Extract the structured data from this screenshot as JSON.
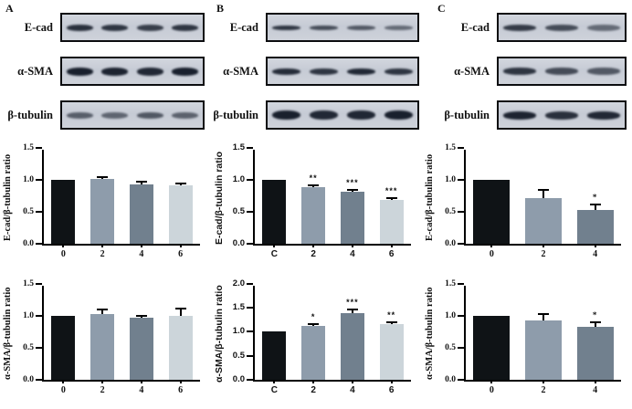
{
  "figure": {
    "bar_colors": [
      "#0f1316",
      "#8e9cab",
      "#71808e",
      "#ccd5da"
    ],
    "blot_band_color": "#141b28",
    "panels": [
      {
        "id": "A",
        "blots": [
          {
            "label": "E-cad",
            "lane_intensities": [
              0.88,
              0.85,
              0.8,
              0.85
            ],
            "band_thickness": 7
          },
          {
            "label": "α-SMA",
            "lane_intensities": [
              0.97,
              0.95,
              0.92,
              0.97
            ],
            "band_thickness": 9
          },
          {
            "label": "β-tubulin",
            "lane_intensities": [
              0.62,
              0.58,
              0.66,
              0.6
            ],
            "band_thickness": 7
          }
        ]
      },
      {
        "id": "B",
        "blots": [
          {
            "label": "E-cad",
            "lane_intensities": [
              0.85,
              0.72,
              0.65,
              0.55
            ],
            "band_thickness": 5
          },
          {
            "label": "α-SMA",
            "lane_intensities": [
              0.9,
              0.85,
              0.92,
              0.85
            ],
            "band_thickness": 7
          },
          {
            "label": "β-tubulin",
            "lane_intensities": [
              0.97,
              0.92,
              0.93,
              0.97
            ],
            "band_thickness": 10
          }
        ]
      },
      {
        "id": "C",
        "blots": [
          {
            "label": "E-cad",
            "lane_intensities": [
              0.82,
              0.72,
              0.55
            ],
            "band_thickness": 7
          },
          {
            "label": "α-SMA",
            "lane_intensities": [
              0.85,
              0.72,
              0.65
            ],
            "band_thickness": 8
          },
          {
            "label": "β-tubulin",
            "lane_intensities": [
              0.95,
              0.88,
              0.92
            ],
            "band_thickness": 9
          }
        ]
      }
    ]
  },
  "chart_data": [
    {
      "id": "A-ecad",
      "panel": "A",
      "row": 1,
      "type": "bar",
      "ylabel": "E-cad/β-tubulin ratio",
      "categories": [
        "0",
        "2",
        "4",
        "6"
      ],
      "values": [
        1.0,
        1.02,
        0.93,
        0.91
      ],
      "errors": [
        0,
        0.02,
        0.03,
        0.02
      ],
      "sig": [
        "",
        "",
        "",
        ""
      ],
      "ylim": [
        0,
        1.5
      ],
      "yticks": [
        "0.0",
        "0.5",
        "1.0",
        "1.5"
      ]
    },
    {
      "id": "A-asma",
      "panel": "A",
      "row": 2,
      "type": "bar",
      "ylabel": "α-SMA/β-tubulin ratio",
      "categories": [
        "0",
        "2",
        "4",
        "6"
      ],
      "values": [
        1.0,
        1.03,
        0.97,
        1.0
      ],
      "errors": [
        0,
        0.05,
        0.02,
        0.1
      ],
      "sig": [
        "",
        "",
        "",
        ""
      ],
      "ylim": [
        0,
        1.5
      ],
      "yticks": [
        "0.0",
        "0.5",
        "1.0",
        "1.5"
      ]
    },
    {
      "id": "B-ecad",
      "panel": "B",
      "row": 1,
      "type": "bar",
      "ylabel": "E-cad/β-tubulin ratio",
      "categories": [
        "C",
        "2",
        "4",
        "6"
      ],
      "values": [
        1.0,
        0.89,
        0.81,
        0.69
      ],
      "errors": [
        0,
        0.015,
        0.015,
        0.02
      ],
      "sig": [
        "",
        "**",
        "***",
        "***"
      ],
      "ylim": [
        0,
        1.5
      ],
      "yticks": [
        "0.0",
        "0.5",
        "1.0",
        "1.5"
      ]
    },
    {
      "id": "B-asma",
      "panel": "B",
      "row": 2,
      "type": "bar",
      "ylabel": "α-SMA/β-tubulin ratio",
      "categories": [
        "C",
        "2",
        "4",
        "6"
      ],
      "values": [
        1.0,
        1.12,
        1.39,
        1.17
      ],
      "errors": [
        0,
        0.015,
        0.05,
        0.015
      ],
      "sig": [
        "",
        "*",
        "***",
        "**"
      ],
      "ylim": [
        0,
        2.0
      ],
      "yticks": [
        "0.0",
        "0.5",
        "1.0",
        "1.5",
        "2.0"
      ]
    },
    {
      "id": "C-ecad",
      "panel": "C",
      "row": 1,
      "type": "bar",
      "ylabel": "E-cad/β-tubulin ratio",
      "categories": [
        "0",
        "2",
        "4"
      ],
      "values": [
        1.0,
        0.71,
        0.53
      ],
      "errors": [
        0,
        0.11,
        0.07
      ],
      "sig": [
        "",
        "",
        "*"
      ],
      "ylim": [
        0,
        1.5
      ],
      "yticks": [
        "0.0",
        "0.5",
        "1.0",
        "1.5"
      ]
    },
    {
      "id": "C-asma",
      "panel": "C",
      "row": 2,
      "type": "bar",
      "ylabel": "α-SMA/β-tubulin ratio",
      "categories": [
        "0",
        "2",
        "4"
      ],
      "values": [
        1.0,
        0.93,
        0.83
      ],
      "errors": [
        0,
        0.09,
        0.05
      ],
      "sig": [
        "",
        "",
        "*"
      ],
      "ylim": [
        0,
        1.5
      ],
      "yticks": [
        "0.0",
        "0.5",
        "1.0",
        "1.5"
      ]
    }
  ]
}
